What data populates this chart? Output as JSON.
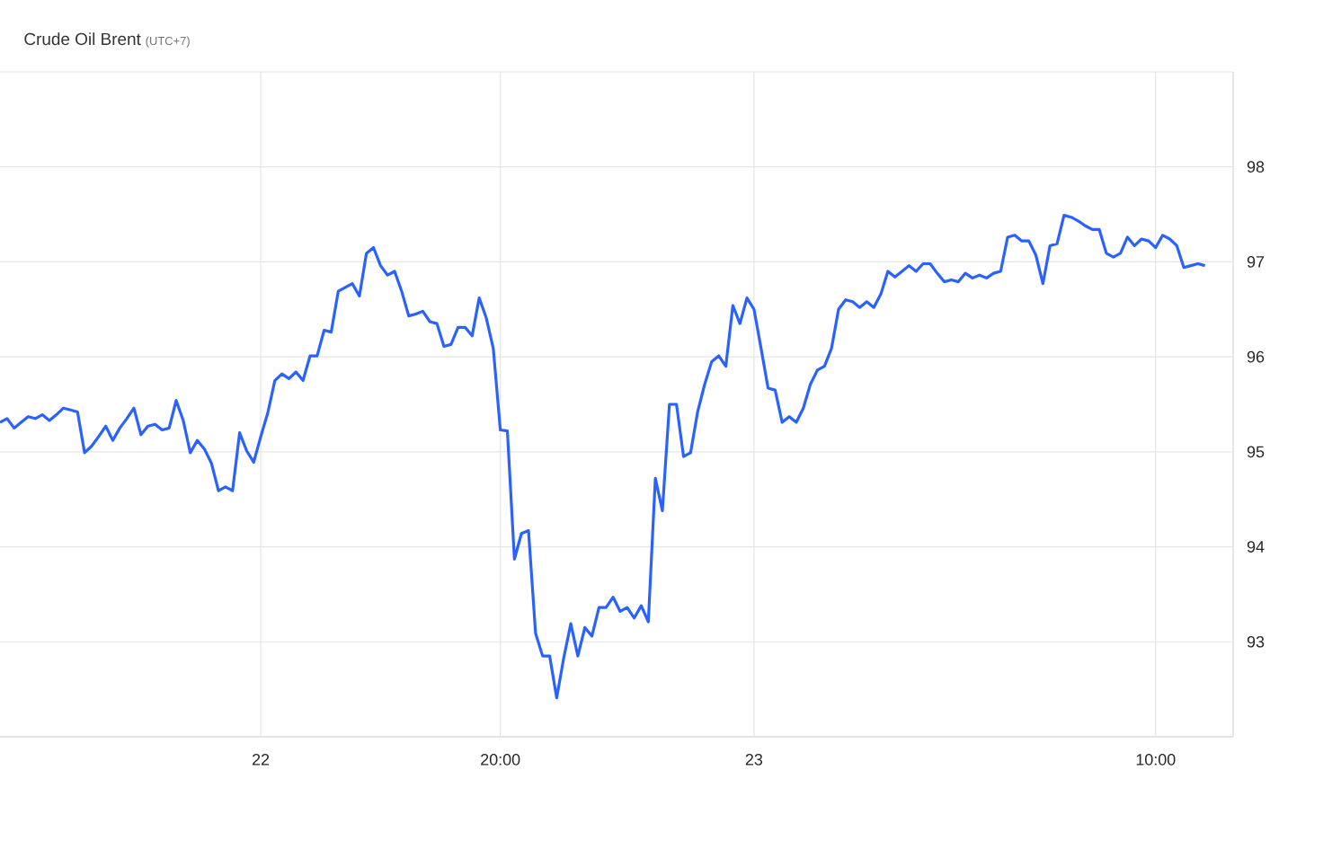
{
  "chart_data": {
    "type": "line",
    "title": "Crude Oil Brent",
    "subtitle": "(UTC+7)",
    "categories": [
      null,
      null,
      null,
      null,
      null,
      null,
      null,
      null,
      null,
      null,
      null,
      null,
      null,
      null,
      null,
      null,
      null,
      null,
      null,
      null,
      null,
      null,
      null,
      null,
      null,
      null,
      null,
      null,
      null,
      null,
      null,
      null,
      null,
      null,
      null,
      null,
      null,
      "22",
      null,
      null,
      null,
      null,
      null,
      null,
      null,
      null,
      null,
      null,
      null,
      null,
      null,
      null,
      null,
      null,
      null,
      null,
      null,
      null,
      null,
      null,
      null,
      null,
      null,
      null,
      null,
      null,
      null,
      null,
      null,
      null,
      null,
      "20:00",
      null,
      null,
      null,
      null,
      null,
      null,
      null,
      null,
      null,
      null,
      null,
      null,
      null,
      null,
      null,
      null,
      null,
      null,
      null,
      null,
      null,
      null,
      null,
      null,
      null,
      null,
      null,
      null,
      null,
      null,
      null,
      null,
      null,
      null,
      null,
      "23",
      null,
      null,
      null,
      null,
      null,
      null,
      null,
      null,
      null,
      null,
      null,
      null,
      null,
      null,
      null,
      null,
      null,
      null,
      null,
      null,
      null,
      null,
      null,
      null,
      null,
      null,
      null,
      null,
      null,
      null,
      null,
      null,
      null,
      null,
      null,
      null,
      null,
      null,
      null,
      null,
      null,
      null,
      null,
      null,
      null,
      null,
      null,
      null,
      null,
      null,
      null,
      null,
      null,
      null,
      null,
      null,
      "10:00",
      null,
      null,
      null,
      null,
      null,
      null,
      null
    ],
    "series": [
      {
        "color": "#2962ff",
        "values": [
          95.31,
          95.35,
          95.25,
          95.31,
          95.37,
          95.35,
          95.39,
          95.33,
          95.39,
          95.46,
          95.44,
          95.42,
          94.99,
          95.06,
          95.16,
          95.27,
          95.12,
          95.25,
          95.35,
          95.46,
          95.18,
          95.27,
          95.29,
          95.23,
          95.25,
          95.54,
          95.33,
          94.99,
          95.12,
          95.03,
          94.88,
          94.59,
          94.63,
          94.59,
          95.2,
          95.01,
          94.89,
          95.16,
          95.41,
          95.75,
          95.82,
          95.77,
          95.84,
          95.75,
          96.01,
          96.01,
          96.28,
          96.26,
          96.69,
          96.73,
          96.77,
          96.64,
          97.09,
          97.15,
          96.96,
          96.86,
          96.9,
          96.69,
          96.43,
          96.45,
          96.48,
          96.37,
          96.35,
          96.11,
          96.13,
          96.31,
          96.31,
          96.22,
          96.62,
          96.41,
          96.09,
          95.23,
          95.22,
          93.87,
          94.14,
          94.17,
          93.09,
          92.85,
          92.85,
          92.41,
          92.83,
          93.19,
          92.85,
          93.15,
          93.06,
          93.36,
          93.36,
          93.47,
          93.32,
          93.36,
          93.25,
          93.38,
          93.21,
          94.72,
          94.38,
          95.5,
          95.5,
          94.95,
          94.99,
          95.42,
          95.71,
          95.95,
          96.01,
          95.9,
          96.54,
          96.35,
          96.62,
          96.5,
          96.09,
          95.67,
          95.65,
          95.31,
          95.37,
          95.31,
          95.46,
          95.71,
          95.86,
          95.9,
          96.09,
          96.5,
          96.6,
          96.58,
          96.52,
          96.58,
          96.52,
          96.66,
          96.9,
          96.84,
          96.9,
          96.96,
          96.9,
          96.98,
          96.98,
          96.88,
          96.79,
          96.81,
          96.79,
          96.88,
          96.83,
          96.86,
          96.83,
          96.88,
          96.9,
          97.26,
          97.28,
          97.22,
          97.22,
          97.07,
          96.77,
          97.17,
          97.19,
          97.49,
          97.47,
          97.43,
          97.38,
          97.34,
          97.34,
          97.09,
          97.05,
          97.09,
          97.26,
          97.17,
          97.24,
          97.22,
          97.15,
          97.28,
          97.24,
          97.17,
          96.94,
          96.96,
          96.98,
          96.96
        ]
      }
    ],
    "ylim": [
      92,
      99
    ],
    "yticks": [
      {
        "value": 92,
        "label": null
      },
      93,
      94,
      95,
      96,
      97,
      98,
      {
        "value": 99,
        "label": null
      }
    ],
    "grid": true
  }
}
